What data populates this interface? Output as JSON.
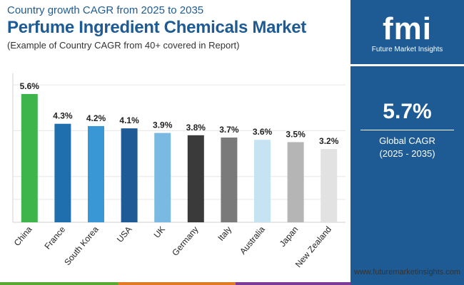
{
  "header": {
    "subtitle": "Country growth CAGR from 2025 to 2035",
    "title": "Perfume Ingredient Chemicals Market",
    "note": "(Example of Country CAGR from 40+ covered in Report)"
  },
  "brand": {
    "logo_text": "fmi",
    "logo_sub": "Future Market Insights",
    "website": "www.futuremarketinsights.com"
  },
  "summary": {
    "value": "5.7%",
    "label_line1": "Global CAGR",
    "label_line2": "(2025 - 2035)"
  },
  "colors": {
    "brand_blue": "#1e5b94",
    "bottom_bar": [
      "#5aa832",
      "#e07b24",
      "#7b3a96"
    ]
  },
  "chart_data": {
    "type": "bar",
    "title": "Perfume Ingredient Chemicals Market",
    "xlabel": "",
    "ylabel": "",
    "ylim": [
      0,
      6.5
    ],
    "grid": true,
    "categories": [
      "China",
      "France",
      "South Korea",
      "USA",
      "UK",
      "Germany",
      "Italy",
      "Australia",
      "Japan",
      "New Zealand"
    ],
    "values": [
      5.6,
      4.3,
      4.2,
      4.1,
      3.9,
      3.8,
      3.7,
      3.6,
      3.5,
      3.2
    ],
    "labels": [
      "5.6%",
      "4.3%",
      "4.2%",
      "4.1%",
      "3.9%",
      "3.8%",
      "3.7%",
      "3.6%",
      "3.5%",
      "3.2%"
    ],
    "colors": [
      "#3db54a",
      "#1f6fae",
      "#3a97d5",
      "#1d5a96",
      "#7ab9e2",
      "#3a3a3a",
      "#7a7a7a",
      "#c5e3f3",
      "#b5b5b5",
      "#e2e2e2"
    ]
  }
}
